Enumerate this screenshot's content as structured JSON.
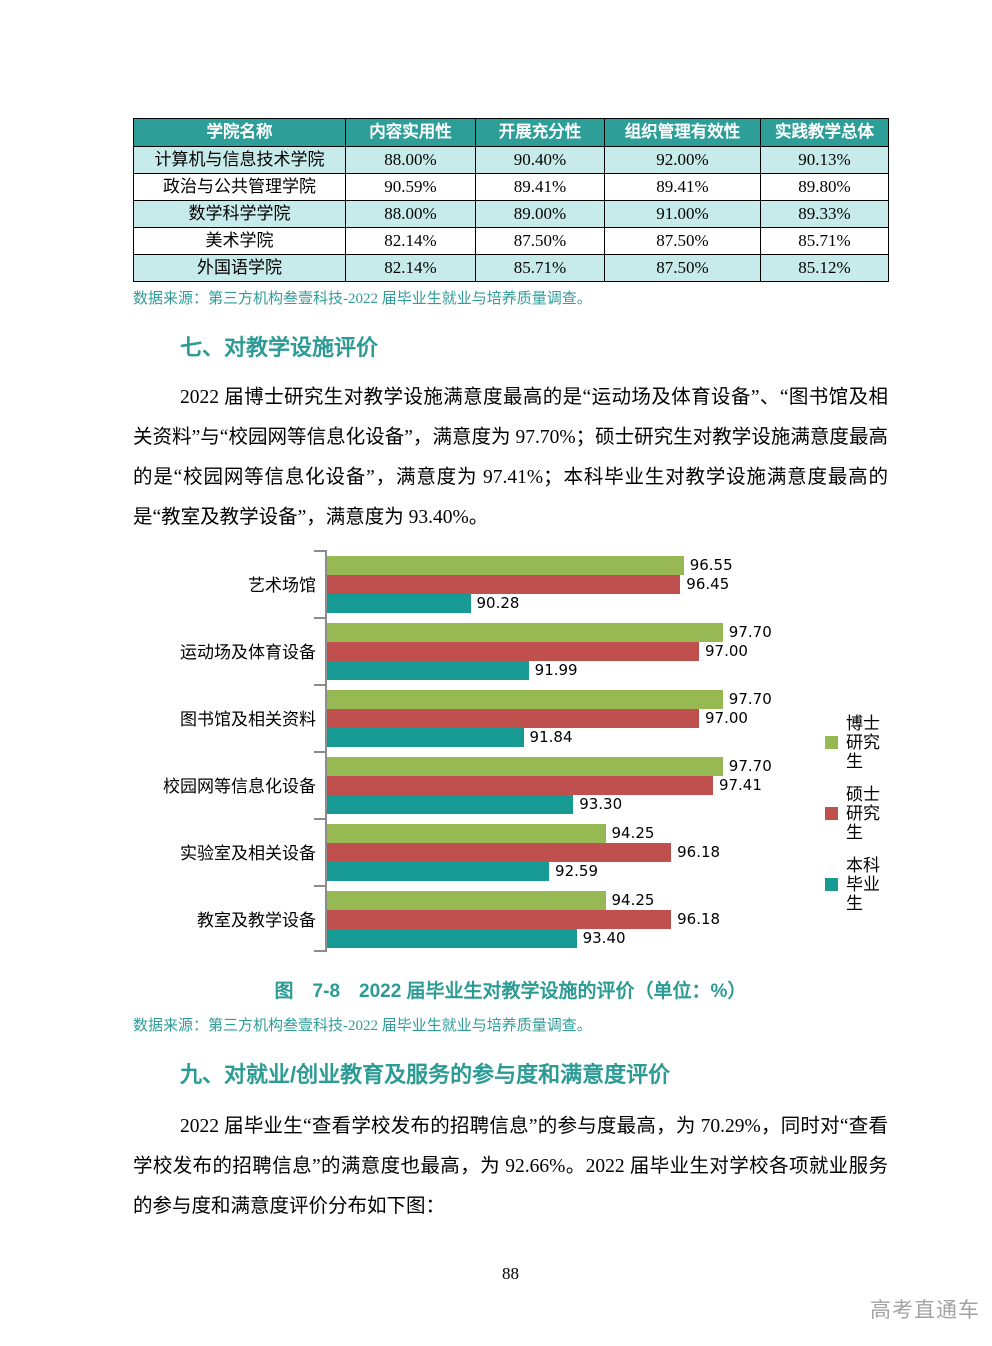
{
  "table": {
    "headers": [
      "学院名称",
      "内容实用性",
      "开展充分性",
      "组织管理有效性",
      "实践教学总体"
    ],
    "rows": [
      [
        "计算机与信息技术学院",
        "88.00%",
        "90.40%",
        "92.00%",
        "90.13%"
      ],
      [
        "政治与公共管理学院",
        "90.59%",
        "89.41%",
        "89.41%",
        "89.80%"
      ],
      [
        "数学科学学院",
        "88.00%",
        "89.00%",
        "91.00%",
        "89.33%"
      ],
      [
        "美术学院",
        "82.14%",
        "87.50%",
        "87.50%",
        "85.71%"
      ],
      [
        "外国语学院",
        "82.14%",
        "85.71%",
        "87.50%",
        "85.12%"
      ]
    ]
  },
  "source_note_table": "数据来源：第三方机构叁壹科技-2022 届毕业生就业与培养质量调查。",
  "section7": {
    "heading": "七、对教学设施评价",
    "paragraph": "2022 届博士研究生对教学设施满意度最高的是“运动场及体育设备”、“图书馆及相关资料”与“校园网等信息化设备”，满意度为 97.70%；硕士研究生对教学设施满意度最高的是“校园网等信息化设备”，满意度为 97.41%；本科毕业生对教学设施满意度最高的是“教室及教学设备”，满意度为 93.40%。"
  },
  "chart_data": {
    "type": "bar",
    "orientation": "horizontal",
    "title": "图　7-8　2022 届毕业生对教学设施的评价（单位：%）",
    "categories": [
      "艺术场馆",
      "运动场及体育设备",
      "图书馆及相关资料",
      "校园网等信息化设备",
      "实验室及相关设备",
      "教室及教学设备"
    ],
    "series": [
      {
        "name": "博士研究生",
        "color": "#97B954",
        "values": [
          96.55,
          97.7,
          97.7,
          97.7,
          94.25,
          94.25
        ]
      },
      {
        "name": "硕士研究生",
        "color": "#C0504D",
        "values": [
          96.45,
          97.0,
          97.0,
          97.41,
          96.18,
          96.18
        ]
      },
      {
        "name": "本科毕业生",
        "color": "#189A94",
        "values": [
          90.28,
          91.99,
          91.84,
          93.3,
          92.59,
          93.4
        ]
      }
    ],
    "xlim": [
      86,
      98.5
    ],
    "value_labels": true,
    "grid": false,
    "legend_position": "right",
    "xlabel": "",
    "ylabel": ""
  },
  "chart_caption": "图　7-8　2022 届毕业生对教学设施的评价（单位：%）",
  "source_note_chart": "数据来源：第三方机构叁壹科技-2022 届毕业生就业与培养质量调查。",
  "section9": {
    "heading": "九、对就业/创业教育及服务的参与度和满意度评价",
    "paragraph": "2022 届毕业生“查看学校发布的招聘信息”的参与度最高，为 70.29%，同时对“查看学校发布的招聘信息”的满意度也最高，为 92.66%。2022 届毕业生对学校各项就业服务的参与度和满意度评价分布如下图："
  },
  "footer": {
    "page_number": "88",
    "watermark": "高考直通车"
  },
  "colors": {
    "accent_teal": "#2B9B94",
    "table_header_bg": "#2E9E99",
    "table_row_alt_bg": "#C7EBEA",
    "axis_gray": "#8C8C8C",
    "watermark_gray": "#A3A3A3"
  }
}
